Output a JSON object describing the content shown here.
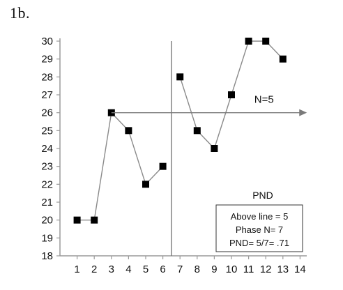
{
  "panel_label": "1b.",
  "chart_data": {
    "type": "line",
    "title": "",
    "xlabel": "",
    "ylabel": "",
    "xlim": [
      0,
      14
    ],
    "ylim": [
      18,
      30
    ],
    "x_ticks": [
      "1",
      "2",
      "3",
      "4",
      "5",
      "6",
      "7",
      "8",
      "9",
      "10",
      "11",
      "12",
      "13",
      "14"
    ],
    "y_ticks": [
      "18",
      "19",
      "20",
      "21",
      "22",
      "23",
      "24",
      "25",
      "26",
      "27",
      "28",
      "29",
      "30"
    ],
    "marker": "square",
    "line_color": "#8a8a8a",
    "marker_color": "#000000",
    "series": [
      {
        "x": [
          1,
          2,
          3,
          4,
          5,
          6
        ],
        "values": [
          20,
          20,
          26,
          25,
          22,
          23
        ]
      },
      {
        "x": [
          7,
          8,
          9,
          10,
          11,
          12,
          13
        ],
        "values": [
          28,
          25,
          24,
          27,
          30,
          30,
          29
        ]
      }
    ],
    "phase_change_x": 6.5,
    "reference_line": {
      "y": 26,
      "x_start": 3,
      "x_end": 14.4,
      "label": "N=5"
    },
    "pnd_box": {
      "title": "PND",
      "lines": [
        "Above line = 5",
        "Phase N= 7",
        "PND= 5/7= .71"
      ]
    }
  }
}
